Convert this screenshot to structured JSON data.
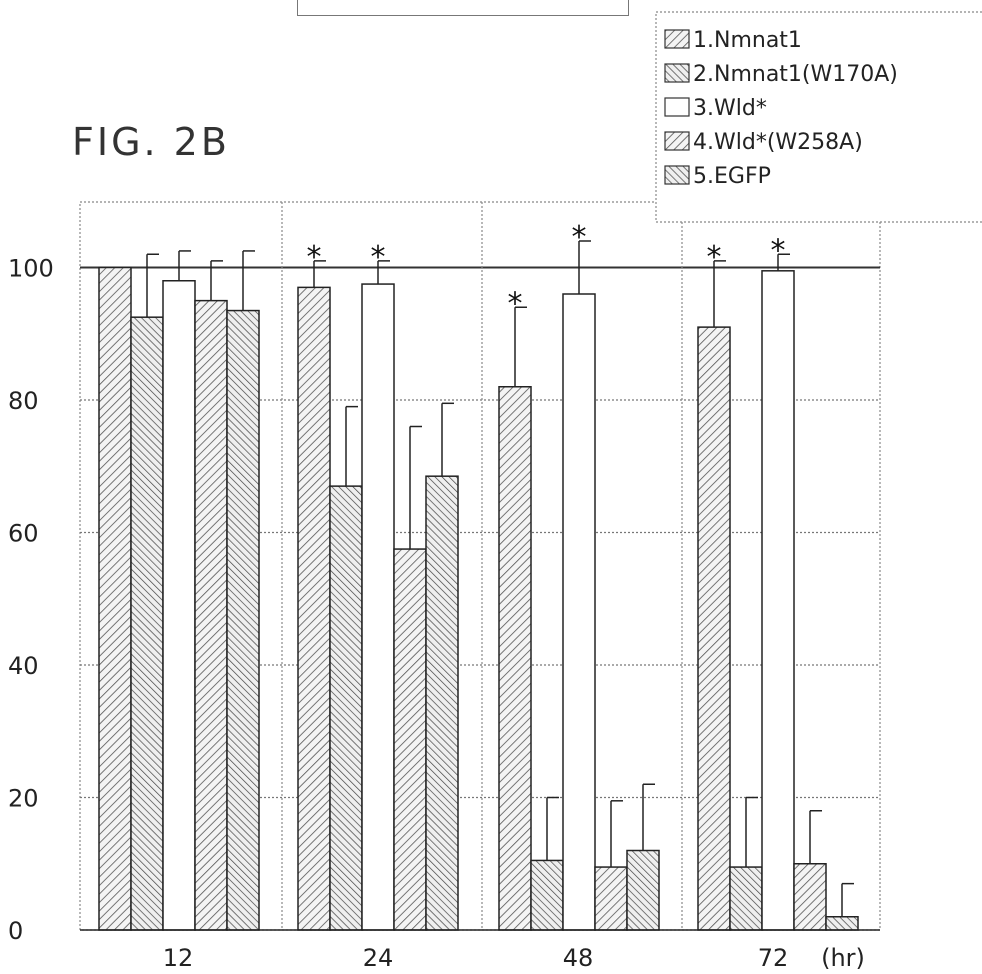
{
  "figure_label": "FIG. 2B",
  "chart_data": {
    "type": "bar",
    "categories": [
      "12",
      "24",
      "48",
      "72"
    ],
    "x_unit_label": "(hr)",
    "ylim": [
      0,
      110
    ],
    "yticks": [
      0,
      20,
      40,
      60,
      80,
      100
    ],
    "grid": true,
    "legend_position": "top-right",
    "series": [
      {
        "name": "1.Nmnat1",
        "pattern": "diag-right",
        "values": [
          100,
          97,
          82,
          91
        ],
        "errors": [
          0,
          4,
          12,
          10
        ],
        "significant": [
          false,
          true,
          true,
          true
        ]
      },
      {
        "name": "2.Nmnat1(W170A)",
        "pattern": "diag-left",
        "values": [
          92.5,
          67,
          10.5,
          9.5
        ],
        "errors": [
          9.5,
          12,
          9.5,
          10.5
        ],
        "significant": [
          false,
          false,
          false,
          false
        ]
      },
      {
        "name": "3.Wld*",
        "pattern": "blank",
        "values": [
          98,
          97.5,
          96,
          99.5
        ],
        "errors": [
          4.5,
          3.5,
          8,
          2.5
        ],
        "significant": [
          false,
          true,
          true,
          true
        ]
      },
      {
        "name": "4.Wld*(W258A)",
        "pattern": "diag-right",
        "values": [
          95,
          57.5,
          9.5,
          10
        ],
        "errors": [
          6,
          18.5,
          10,
          8
        ],
        "significant": [
          false,
          false,
          false,
          false
        ]
      },
      {
        "name": "5.EGFP",
        "pattern": "diag-left",
        "values": [
          93.5,
          68.5,
          12,
          2
        ],
        "errors": [
          9,
          11,
          10,
          5
        ],
        "significant": [
          false,
          false,
          false,
          false
        ]
      }
    ]
  }
}
